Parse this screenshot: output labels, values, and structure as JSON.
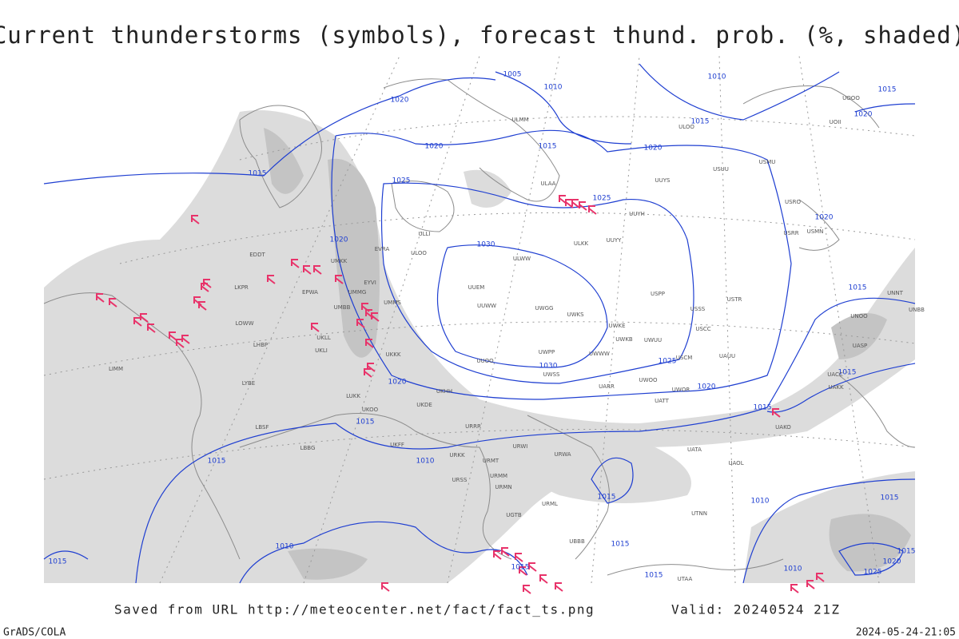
{
  "header": {
    "title": "Current thunderstorms (symbols), forecast thund. prob. (%, shaded)"
  },
  "footer": {
    "saved": "Saved from URL http://meteocenter.net/fact/fact_ts.png",
    "valid": "Valid: 20240524 21Z",
    "credit": "GrADS/COLA",
    "timestamp": "2024-05-24-21:05"
  },
  "isobars": [
    1005,
    1010,
    1010,
    1015,
    1020,
    1020,
    1015,
    1020,
    1015,
    1020,
    1025,
    1025,
    1015,
    1020,
    1020,
    1030,
    1030,
    1025,
    1020,
    1015,
    1015,
    1015,
    1020,
    1015,
    1015,
    1010,
    1015,
    1010,
    1015,
    1010,
    1015,
    1015,
    1015,
    1015,
    1010,
    1015,
    1020,
    1025
  ],
  "stations": [
    "ULMM",
    "ULOO",
    "UOOO",
    "UOII",
    "ULAA",
    "UUYS",
    "UUYH",
    "USUU",
    "USMU",
    "USRO",
    "USRR",
    "USMN",
    "ULLI",
    "ULOO",
    "ULWW",
    "ULKK",
    "UUYY",
    "UUEM",
    "UUWW",
    "UWGG",
    "UWKS",
    "UWKE",
    "UWKB",
    "UWUU",
    "USPP",
    "USSS",
    "USCC",
    "USTR",
    "UUOO",
    "UWPP",
    "UWSS",
    "UWWW",
    "UARR",
    "UWOO",
    "UATT",
    "USCM",
    "UAUU",
    "UWOR",
    "UKKK",
    "UMMS",
    "UMBB",
    "UMMG",
    "EYVI",
    "EVRA",
    "UMKK",
    "EPWA",
    "UKLL",
    "UKLI",
    "LOWW",
    "LHBP",
    "LKPR",
    "EDDT",
    "LIMM",
    "UKHH",
    "UKDE",
    "UKOO",
    "LUKK",
    "URRR",
    "URWI",
    "URWA",
    "UATA",
    "UAOL",
    "UAKO",
    "UAKK",
    "UACC",
    "UASP",
    "UNNT",
    "UNBB",
    "UNOO",
    "URMT",
    "URMM",
    "URMN",
    "URML",
    "UGTB",
    "UBBB",
    "UTAA",
    "UTNN",
    "LBSF",
    "LBBG",
    "LYBE",
    "UKFF",
    "URKK",
    "URSS"
  ]
}
